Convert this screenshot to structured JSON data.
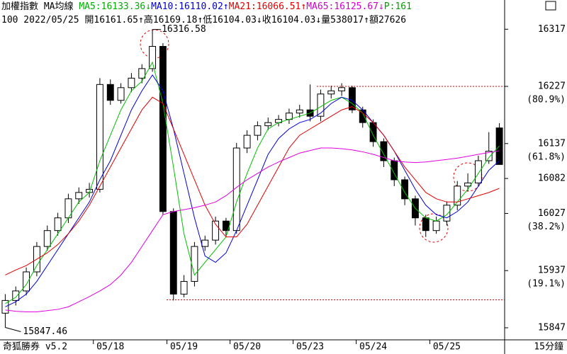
{
  "chart_data": {
    "type": "candlestick",
    "header": [
      [
        {
          "text": "加權指數 MA均線 ",
          "color": "#000000"
        },
        {
          "text": "MA5:16133.36↓",
          "color": "#00b000"
        },
        {
          "text": "MA10:16110.02↑",
          "color": "#0000d0"
        },
        {
          "text": "MA21:16066.51↑",
          "color": "#e00000"
        },
        {
          "text": "MA65:16125.67↓",
          "color": "#d000d0"
        },
        {
          "text": "P:161",
          "color": "#00a000"
        }
      ],
      [
        {
          "text": "100 2022/05/25 開16161.65↑高16169.18↑低16104.03↓收16104.03↓量538017↑額27626",
          "color": "#000000"
        }
      ]
    ],
    "categories": [
      null,
      null,
      null,
      null,
      null,
      null,
      null,
      null,
      null,
      null,
      "05/18",
      null,
      null,
      null,
      null,
      null,
      null,
      "05/19",
      null,
      null,
      null,
      null,
      null,
      "05/20",
      null,
      null,
      null,
      null,
      null,
      "05/23",
      null,
      null,
      null,
      null,
      null,
      "05/24",
      null,
      null,
      null,
      null,
      null,
      null,
      "05/25",
      null,
      null,
      null,
      null,
      null
    ],
    "open": [
      15870,
      15890,
      15905,
      15935,
      15975,
      16000,
      16020,
      16050,
      16060,
      16065,
      16230,
      16205,
      16225,
      16240,
      16255,
      16290,
      16030,
      15900,
      15920,
      15975,
      15985,
      16015,
      16000,
      16130,
      16150,
      16165,
      16170,
      16175,
      16185,
      16190,
      16180,
      16215,
      16220,
      16225,
      16190,
      16170,
      16140,
      16110,
      16080,
      16050,
      16020,
      16000,
      16015,
      16040,
      16070,
      16075,
      16110,
      16161.65
    ],
    "high": [
      15900,
      15912,
      15942,
      15982,
      16008,
      16028,
      16058,
      16068,
      16075,
      16240,
      16238,
      16232,
      16248,
      16262,
      16316.58,
      16295,
      16035,
      15930,
      15982,
      15992,
      16022,
      16020,
      16138,
      16158,
      16172,
      16178,
      16182,
      16192,
      16198,
      16230,
      16222,
      16228,
      16232,
      16228,
      16195,
      16175,
      16145,
      16115,
      16085,
      16055,
      16025,
      16022,
      16046,
      16078,
      16090,
      16118,
      16155,
      16169.18
    ],
    "low": [
      15847.46,
      15882,
      15898,
      15928,
      15968,
      15992,
      16012,
      16042,
      16052,
      16060,
      16198,
      16200,
      16218,
      16232,
      16250,
      16025,
      15890,
      15895,
      15912,
      15968,
      15978,
      15992,
      15995,
      16122,
      16142,
      16158,
      16164,
      16168,
      16178,
      16172,
      16172,
      16208,
      16212,
      16185,
      16162,
      16132,
      16100,
      16070,
      16040,
      16008,
      15990,
      15995,
      16008,
      16032,
      16062,
      16070,
      16105,
      16104.03
    ],
    "close": [
      15890,
      15905,
      15935,
      15975,
      16000,
      16020,
      16050,
      16060,
      16065,
      16230,
      16205,
      16225,
      16240,
      16255,
      16290,
      16030,
      15900,
      15920,
      15975,
      15985,
      16015,
      16000,
      16130,
      16150,
      16165,
      16170,
      16175,
      16185,
      16190,
      16180,
      16215,
      16220,
      16225,
      16190,
      16170,
      16140,
      16110,
      16080,
      16050,
      16020,
      16000,
      16015,
      16040,
      16070,
      16075,
      16110,
      16125,
      16104.03
    ],
    "series": [
      {
        "name": "MA5",
        "color": "#00c000",
        "values": [
          15885,
          15895,
          15915,
          15945,
          15970,
          15995,
          16020,
          16045,
          16060,
          16110,
          16150,
          16190,
          16220,
          16235,
          16265,
          16200,
          16100,
          15995,
          15930,
          15950,
          15970,
          15990,
          16045,
          16090,
          16130,
          16160,
          16170,
          16175,
          16180,
          16185,
          16195,
          16205,
          16210,
          16200,
          16185,
          16150,
          16120,
          16090,
          16060,
          16035,
          16020,
          16015,
          16025,
          16045,
          16065,
          16090,
          16115,
          16133.36
        ]
      },
      {
        "name": "MA10",
        "color": "#0000e0",
        "values": [
          15880,
          15888,
          15900,
          15920,
          15945,
          15970,
          15995,
          16020,
          16045,
          16080,
          16110,
          16150,
          16190,
          16220,
          16245,
          16220,
          16160,
          16090,
          16020,
          15960,
          15950,
          15965,
          16000,
          16040,
          16080,
          16120,
          16145,
          16160,
          16170,
          16175,
          16185,
          16200,
          16210,
          16205,
          16190,
          16170,
          16150,
          16125,
          16095,
          16065,
          16040,
          16025,
          16020,
          16030,
          16045,
          16070,
          16095,
          16110.02
        ]
      },
      {
        "name": "MA21",
        "color": "#e00000",
        "values": [
          15930,
          15938,
          15945,
          15955,
          15965,
          15978,
          15995,
          16015,
          16040,
          16070,
          16100,
          16130,
          16160,
          16190,
          16210,
          16200,
          16160,
          16120,
          16080,
          16040,
          16010,
          15990,
          15990,
          16010,
          16040,
          16070,
          16100,
          16130,
          16150,
          16160,
          16170,
          16180,
          16190,
          16195,
          16185,
          16170,
          16150,
          16125,
          16100,
          16080,
          16060,
          16050,
          16045,
          16045,
          16050,
          16055,
          16060,
          16066.51
        ]
      },
      {
        "name": "MA65",
        "color": "#e000e0",
        "values": [
          15875,
          15873,
          15872,
          15872,
          15874,
          15876,
          15880,
          15888,
          15896,
          15905,
          15915,
          15930,
          15950,
          15975,
          16000,
          16025,
          16030,
          16033,
          16036,
          16040,
          16045,
          16055,
          16068,
          16080,
          16090,
          16100,
          16108,
          16115,
          16122,
          16126,
          16130,
          16130,
          16129,
          16127,
          16124,
          16120,
          16115,
          16110,
          16108,
          16107,
          16108,
          16110,
          16112,
          16114,
          16117,
          16120,
          16123,
          16125.67
        ]
      }
    ],
    "ylim": [
      15828,
      16363
    ],
    "yticks": [
      16317,
      16227,
      16137,
      16082,
      16027,
      15937,
      15847
    ],
    "pct_ticks": [
      {
        "value": 16227,
        "label": "(80.9%)"
      },
      {
        "value": 16137,
        "label": "(61.8%)"
      },
      {
        "value": 16027,
        "label": "(38.2%)"
      },
      {
        "value": 15937,
        "label": "(19.1%)"
      }
    ],
    "ref_lines": [
      16227,
      15891
    ],
    "max_label": {
      "value": 16316.58,
      "label": "16316.58"
    },
    "min_label": {
      "value": 15847.46,
      "label": "15847.46"
    },
    "footer_left": "奇狐勝券 v5.2",
    "period": "15分鐘"
  }
}
